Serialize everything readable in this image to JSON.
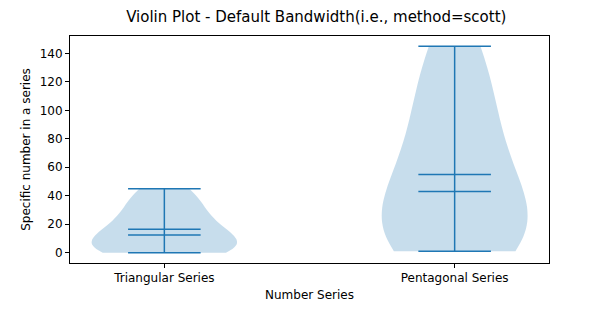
{
  "chart_data": {
    "type": "violin",
    "title": "Violin Plot - Default Bandwidth(i.e., method=scott)",
    "x_label": "Number Series",
    "y_label": "Specific number in a series",
    "categories": [
      "Triangular Series",
      "Pentagonal Series"
    ],
    "values": [
      [
        0,
        1,
        3,
        6,
        10,
        15,
        21,
        28,
        36,
        45
      ],
      [
        1,
        5,
        12,
        22,
        35,
        51,
        70,
        92,
        117,
        145
      ]
    ],
    "color": "#1f77b4",
    "ylim": [
      -7.25,
      152.25
    ],
    "yticks": [
      0,
      20,
      40,
      60,
      80,
      100,
      120,
      140
    ],
    "grid": false
  }
}
